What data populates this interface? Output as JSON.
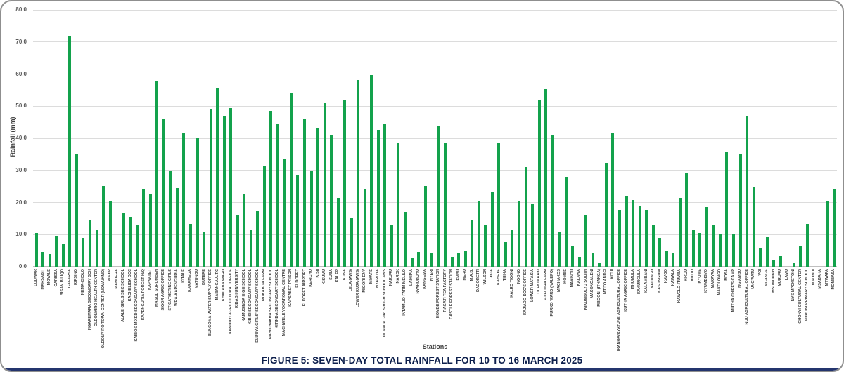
{
  "figure": {
    "caption": "FIGURE 5: SEVEN-DAY TOTAL RAINFALL FOR 10 TO 16 MARCH 2025"
  },
  "chart_data": {
    "type": "bar",
    "title": "",
    "xlabel": "Stations",
    "ylabel": "Rainfall (mm)",
    "ylim": [
      0,
      80
    ],
    "ytick_interval": 10,
    "ytick_labels": [
      "0.0",
      "10.0",
      "20.0",
      "30.0",
      "40.0",
      "50.0",
      "60.0",
      "70.0",
      "80.0"
    ],
    "grid": true,
    "legend": "none",
    "bar_color": "#13a24c",
    "categories": [
      "LODWAR",
      "MARSABIT",
      "MOYALE",
      "GARISSA",
      "BISAN BILIQO",
      "GAFARSA",
      "KIPSING",
      "NEMA-ISIOLO",
      "NGAREMARA SECONDARY SCH",
      "OLDONYIRO HEALTH CENTER",
      "OLDONYIRO TOWN CENTER (NDMA/KMD)",
      "WAJIR",
      "MANDERA",
      "ALALE GIRLS SEC SCHOOL",
      "KACHELIBA DCC",
      "KAIBOS MIXED SECONDARY SCHOOL",
      "KAPENGURIA FOREST H/Q",
      "KAPKATET",
      "MASOL SURUMBEN",
      "SIGOR AGRIC OFFICE",
      "ST CATHERINE GIRLS",
      "WRA-KAPENGURIA",
      "KITALE",
      "KAKAMEGA",
      "MATUNGU",
      "BUTERE",
      "BUNGOMA WATER SUPPLY OFFICE",
      "MABANGA A.T.C",
      "KHALABA WARD",
      "KANDUYI AGRICULTURAL OFFICE",
      "KIBABII UNIVERSITY",
      "KAMUSINGA HIGH SCHOOL",
      "KIBISI SECONDARY SCHOOL",
      "ELUUYA GIRLS' SECONDARY SCHOOL",
      "MUKABUA FARM",
      "NABICHAKHA SECONDARY SCHOOL",
      "KITINDA SECONDARY SCHOOL",
      "MACHWELE VOCATIONAL CENTRE",
      "KAPSABET PRISON",
      "ELDORET",
      "ELDORET AIRPORT",
      "KERICHO",
      "KISII",
      "KISUMU",
      "SUBA",
      "KALER",
      "KUNA",
      "LELA (AWS)",
      "LOWER KUJA (AWS)",
      "MIGORI ENV",
      "MIYARE",
      "NYAROYA",
      "ULANDA GIRLS HIGH SCHOOL AWS",
      "NAKURU",
      "NAROK",
      "INTAMLIO FARM MELILO",
      "LAIKIPIA",
      "NYAHURURU",
      "KANGEMA",
      "NYERI",
      "HOMBE FOREST STATION",
      "RAGATI TEA FACTORY",
      "CASTLE FOREST STATION",
      "EMBU",
      "MERU",
      "M.A.B.",
      "DAGORETTI",
      "WILSON",
      "JKIA",
      "KABETE",
      "THIKA",
      "KALRO TIGONI",
      "NGONG",
      "KAJIADO DCC'S OFFICE",
      "LOWER MATASIA",
      "OLEKIMAAKI",
      "PJ FLORA FARM",
      "PURKO WARD (NALEPO)",
      "MACHAKOS",
      "IKOMBE",
      "MAKINDU",
      "KALAWA",
      "KIKUMBULYU SOUTH",
      "MASONGALENI",
      "MBOONI (ITHANGA)",
      "MTITO ANDEI",
      "KITUI",
      "IKANGA/KYATUNE AGRICULTURAL OFFICE",
      "IKUTHA AGRIC OFFICE",
      "ITHUMULA",
      "KAKUNGULA",
      "KALAMBANI",
      "KALUNGU",
      "KASUNGUNI",
      "KAVOO",
      "KAWALA",
      "KAWELO-ITUMBA",
      "KIKUU",
      "KITOO",
      "KYOME",
      "KYUMBISYO",
      "MAKAYAA",
      "MAKOLONGO",
      "MOSA",
      "MUTHA CHIEF'S CAMP",
      "NG'AMBO",
      "NUU AGRICULTURAL OFFICE",
      "UNG'AATU",
      "VOI",
      "MGANGE",
      "MSUNDUNYI",
      "MURURU",
      "LAMU",
      "NYS MPEKETONI",
      "CHONYI CULTURAL CENTER",
      "VORONI PRIMARY SCHOOL",
      "MALINDI",
      "MSABAHA",
      "MTWAPA",
      "MOMBASA"
    ],
    "values": [
      10.5,
      4.6,
      4.0,
      9.6,
      7.2,
      72.0,
      35.0,
      9.0,
      14.4,
      11.6,
      25.2,
      20.5,
      0.0,
      16.8,
      15.6,
      13.2,
      24.2,
      22.8,
      58.0,
      46.2,
      30.0,
      24.4,
      41.6,
      13.4,
      40.2,
      11.0,
      49.2,
      55.6,
      47.0,
      49.4,
      16.2,
      22.6,
      11.4,
      17.4,
      31.2,
      48.6,
      44.4,
      33.4,
      54.0,
      28.6,
      46.0,
      29.8,
      43.0,
      51.0,
      40.8,
      21.4,
      51.8,
      15.0,
      58.2,
      24.2,
      59.6,
      42.6,
      44.4,
      13.2,
      38.4,
      17.0,
      2.6,
      4.6,
      25.2,
      4.4,
      44.0,
      38.4,
      3.0,
      4.4,
      4.8,
      14.4,
      20.4,
      13.0,
      23.4,
      38.4,
      7.6,
      11.4,
      20.4,
      31.0,
      19.6,
      52.0,
      55.2,
      41.0,
      11.0,
      28.0,
      6.4,
      3.0,
      16.0,
      4.4,
      1.4,
      32.4,
      41.6,
      17.6,
      22.0,
      20.8,
      19.0,
      17.6,
      13.0,
      9.0,
      5.0,
      4.4,
      21.4,
      29.4,
      11.6,
      10.4,
      18.6,
      12.8,
      10.2,
      35.6,
      10.2,
      35.0,
      47.0,
      25.0,
      6.0,
      9.4,
      2.2,
      3.2,
      0.0,
      1.4,
      6.6,
      13.4,
      0.0,
      0.0,
      20.6,
      24.2
    ]
  }
}
